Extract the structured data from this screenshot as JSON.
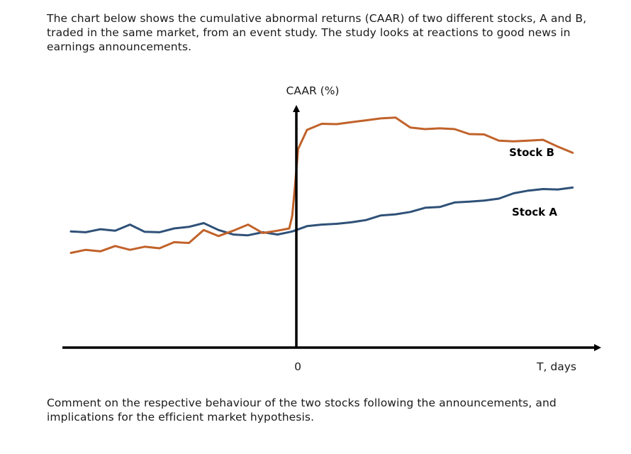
{
  "intro_text": "The chart below shows the cumulative abnormal returns (CAAR) of two different stocks, A and B, traded in the same market, from an event study. The study looks at reactions to good news in earnings announcements.",
  "question_text": "Comment on the respective behaviour of the two stocks following the announcements, and implications for the efficient market hypothesis.",
  "chart_data": {
    "type": "line",
    "title": "",
    "ylabel": "CAAR (%)",
    "xlabel": "T, days",
    "x_tick_labels": [
      "0"
    ],
    "grid": false,
    "legend": "inline labels at right end of each line",
    "series": [
      {
        "name": "Stock A",
        "color": "#2f5178",
        "x": [
          -75,
          -70,
          -65,
          -60,
          -55,
          -50,
          -45,
          -40,
          -35,
          -30,
          -25,
          -20,
          -15,
          -10,
          -5,
          0,
          5,
          10,
          15,
          20,
          25,
          30,
          35,
          40,
          45,
          50,
          55,
          60,
          65,
          70,
          75,
          80,
          85,
          90,
          95
        ],
        "y": [
          0.4,
          0.2,
          1.0,
          0.6,
          2.2,
          0.3,
          0.2,
          1.2,
          1.6,
          2.6,
          0.8,
          -0.4,
          -0.6,
          0.2,
          -0.4,
          0.4,
          1.8,
          2.2,
          2.4,
          2.8,
          3.4,
          4.6,
          4.9,
          5.5,
          6.6,
          6.8,
          8.0,
          8.2,
          8.5,
          9.0,
          10.4,
          11.1,
          11.5,
          11.4,
          11.9
        ]
      },
      {
        "name": "Stock B",
        "color": "#c1622a",
        "x": [
          -75,
          -70,
          -65,
          -60,
          -55,
          -50,
          -45,
          -40,
          -35,
          -30,
          -25,
          -20,
          -15,
          -10,
          -5,
          -1,
          0,
          1,
          2,
          5,
          10,
          15,
          20,
          25,
          30,
          35,
          40,
          45,
          50,
          55,
          60,
          65,
          70,
          75,
          80,
          85,
          90,
          95
        ],
        "y": [
          -5.2,
          -4.4,
          -4.8,
          -3.4,
          -4.4,
          -3.6,
          -4.0,
          -2.4,
          -2.6,
          0.8,
          -0.8,
          0.6,
          2.2,
          0.0,
          0.6,
          1.2,
          4.5,
          13.0,
          22.0,
          27.0,
          28.6,
          28.5,
          29.0,
          29.5,
          30.0,
          30.2,
          27.6,
          27.2,
          27.4,
          27.2,
          25.9,
          25.8,
          24.2,
          24.0,
          24.2,
          24.4,
          22.6,
          21.0
        ]
      }
    ],
    "xlim": [
      -75,
      97
    ],
    "ylim": [
      -30,
      35
    ]
  }
}
